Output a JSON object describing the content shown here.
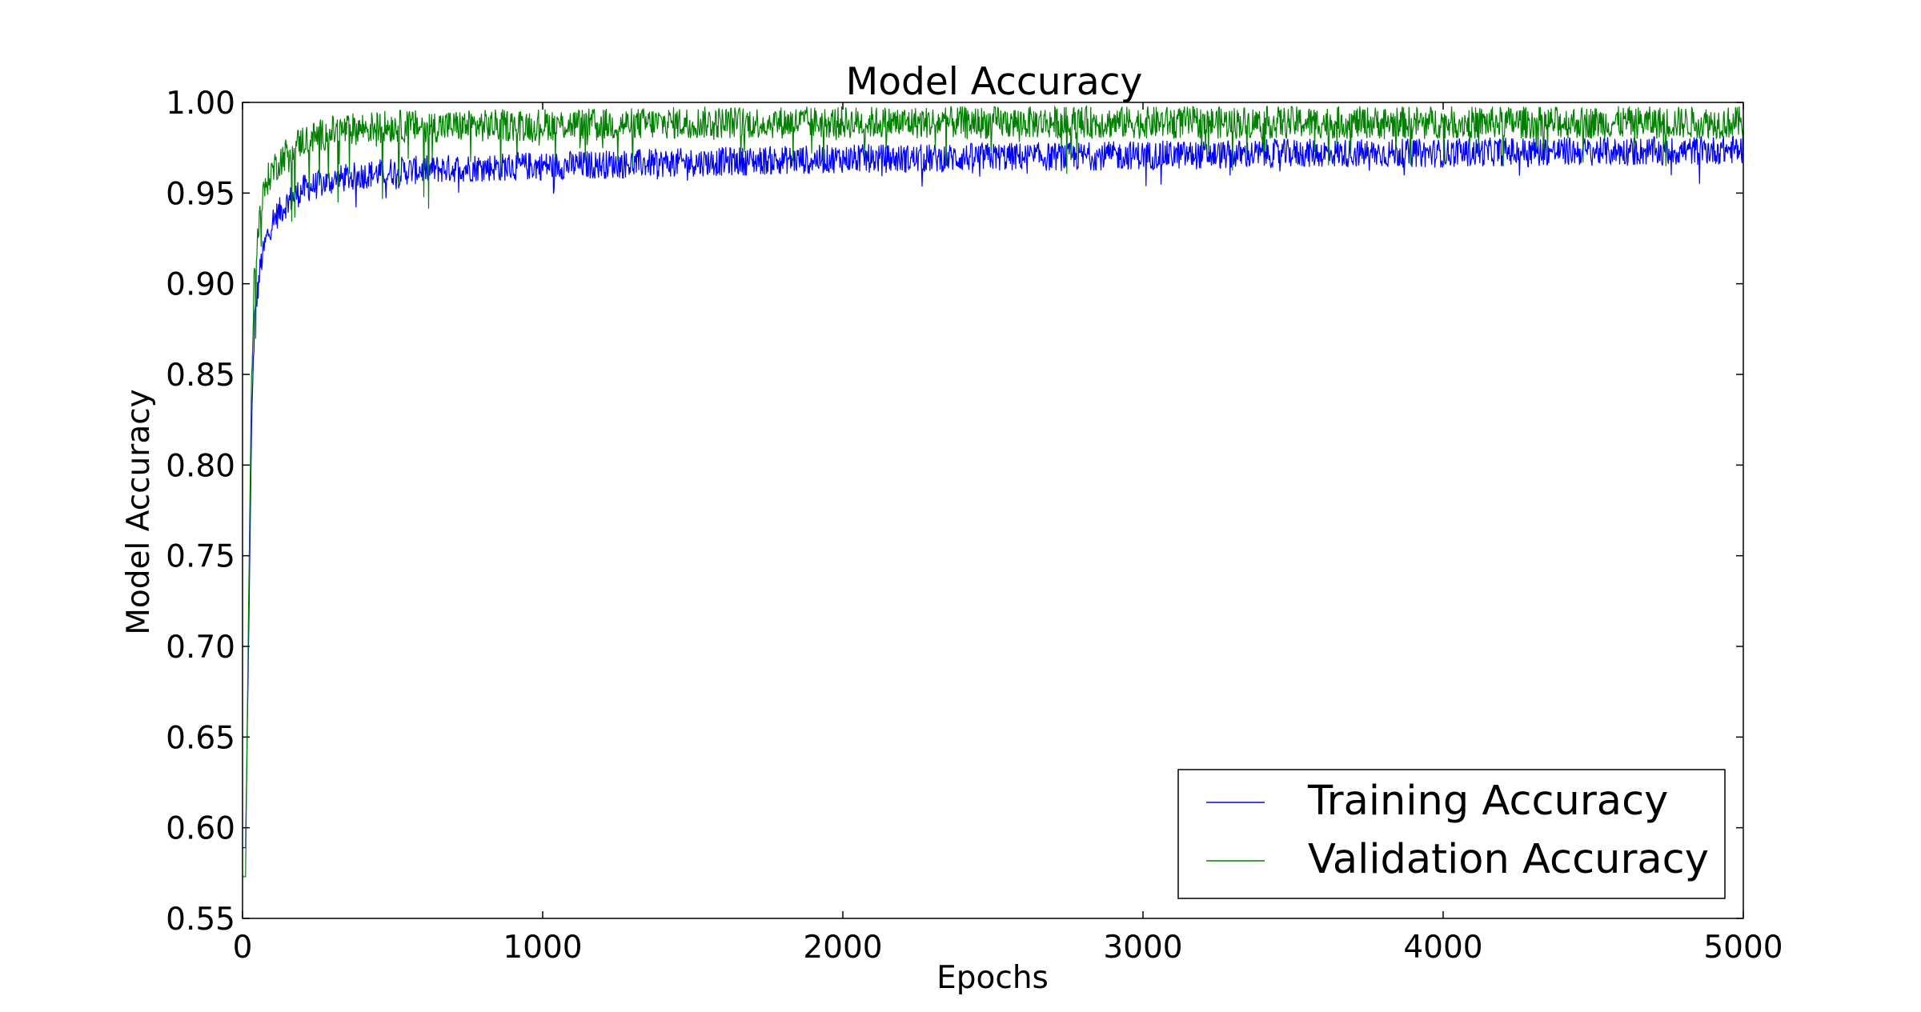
{
  "chart_data": {
    "type": "line",
    "title": "Model Accuracy",
    "xlabel": "Epochs",
    "ylabel": "Model Accuracy",
    "xlim": [
      0,
      5000
    ],
    "ylim": [
      0.55,
      1.0
    ],
    "x_ticks": [
      0,
      1000,
      2000,
      3000,
      4000,
      5000
    ],
    "x_tick_labels": [
      "0",
      "1000",
      "2000",
      "3000",
      "4000",
      "5000"
    ],
    "y_ticks": [
      0.55,
      0.6,
      0.65,
      0.7,
      0.75,
      0.8,
      0.85,
      0.9,
      0.95,
      1.0
    ],
    "y_tick_labels": [
      "0.55",
      "0.60",
      "0.65",
      "0.70",
      "0.75",
      "0.80",
      "0.85",
      "0.90",
      "0.95",
      "1.00"
    ],
    "grid": false,
    "legend_position": "bottom-right",
    "series": [
      {
        "name": "Training Accuracy",
        "color": "#0000ff",
        "x": [
          0,
          10,
          20,
          30,
          40,
          60,
          80,
          100,
          150,
          200,
          300,
          400,
          500,
          750,
          1000,
          1250,
          1500,
          1750,
          2000,
          2250,
          2500,
          2750,
          3000,
          3250,
          3500,
          3750,
          4000,
          4250,
          4500,
          4750,
          5000
        ],
        "values": [
          0.589,
          0.589,
          0.7,
          0.82,
          0.88,
          0.91,
          0.925,
          0.935,
          0.945,
          0.952,
          0.957,
          0.96,
          0.962,
          0.964,
          0.965,
          0.966,
          0.967,
          0.968,
          0.969,
          0.969,
          0.97,
          0.97,
          0.971,
          0.971,
          0.972,
          0.972,
          0.972,
          0.973,
          0.973,
          0.973,
          0.974
        ]
      },
      {
        "name": "Validation Accuracy",
        "color": "#008000",
        "x": [
          0,
          10,
          20,
          30,
          40,
          60,
          80,
          100,
          150,
          200,
          300,
          400,
          500,
          750,
          1000,
          1250,
          1500,
          1750,
          2000,
          2250,
          2500,
          2750,
          3000,
          3250,
          3500,
          3750,
          4000,
          4250,
          4500,
          4750,
          5000
        ],
        "values": [
          0.573,
          0.573,
          0.72,
          0.85,
          0.91,
          0.94,
          0.955,
          0.962,
          0.972,
          0.978,
          0.983,
          0.985,
          0.986,
          0.986,
          0.987,
          0.987,
          0.988,
          0.988,
          0.988,
          0.988,
          0.988,
          0.988,
          0.988,
          0.988,
          0.988,
          0.988,
          0.988,
          0.988,
          0.988,
          0.988,
          0.988
        ]
      }
    ]
  }
}
